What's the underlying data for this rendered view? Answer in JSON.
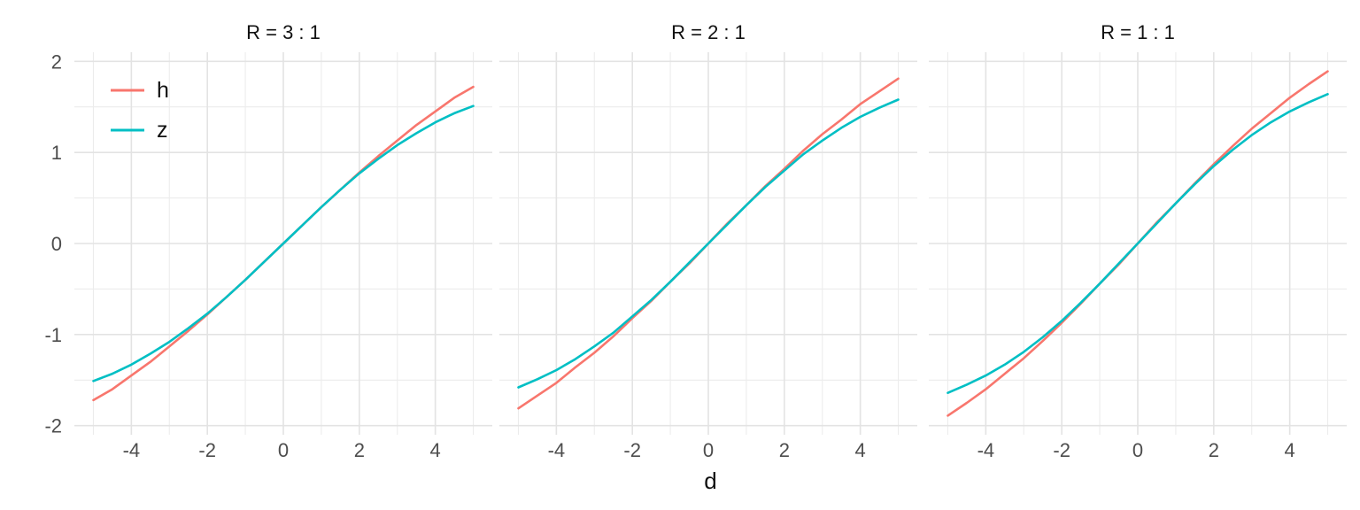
{
  "figure": {
    "xlabel": "d",
    "x_ticks": [
      "-4",
      "-2",
      "0",
      "2",
      "4"
    ],
    "x_tick_values": [
      -4,
      -2,
      0,
      2,
      4
    ],
    "y_ticks": [
      "2",
      "1",
      "0",
      "-1",
      "-2"
    ],
    "y_tick_values": [
      2,
      1,
      0,
      -1,
      -2
    ],
    "xlim": [
      -5.5,
      5.5
    ],
    "ylim": [
      -2.1,
      2.1
    ],
    "grid": {
      "x_major_step": 2,
      "x_minor_step": 1,
      "y_major_step": 1,
      "y_minor_step": 0.5
    },
    "legend": {
      "position": "inside-top-left-first-panel",
      "items": [
        "h",
        "z"
      ]
    },
    "colors": {
      "h": "#F8766D",
      "z": "#00BFC4",
      "grid_major": "#E3E3E3",
      "grid_minor": "#ECECEC",
      "axis_text": "#4D4D4D",
      "title_text": "#111111",
      "background": "#FFFFFF"
    }
  },
  "chart_data": [
    {
      "type": "line",
      "title": "R = 3 : 1",
      "x": [
        -5,
        -4.5,
        -4,
        -3.5,
        -3,
        -2.5,
        -2,
        -1.5,
        -1,
        -0.5,
        0,
        0.5,
        1,
        1.5,
        2,
        2.5,
        3,
        3.5,
        4,
        4.5,
        5
      ],
      "series": [
        {
          "name": "h",
          "values": [
            -1.72,
            -1.6,
            -1.45,
            -1.3,
            -1.13,
            -0.96,
            -0.78,
            -0.59,
            -0.4,
            -0.2,
            0,
            0.2,
            0.4,
            0.59,
            0.78,
            0.96,
            1.13,
            1.3,
            1.45,
            1.6,
            1.72
          ]
        },
        {
          "name": "z",
          "values": [
            -1.51,
            -1.43,
            -1.33,
            -1.21,
            -1.08,
            -0.93,
            -0.77,
            -0.59,
            -0.4,
            -0.2,
            0,
            0.2,
            0.4,
            0.59,
            0.77,
            0.93,
            1.08,
            1.21,
            1.33,
            1.43,
            1.51
          ]
        }
      ]
    },
    {
      "type": "line",
      "title": "R = 2 : 1",
      "x": [
        -5,
        -4.5,
        -4,
        -3.5,
        -3,
        -2.5,
        -2,
        -1.5,
        -1,
        -0.5,
        0,
        0.5,
        1,
        1.5,
        2,
        2.5,
        3,
        3.5,
        4,
        4.5,
        5
      ],
      "series": [
        {
          "name": "h",
          "values": [
            -1.81,
            -1.67,
            -1.53,
            -1.36,
            -1.2,
            -1.02,
            -0.82,
            -0.63,
            -0.42,
            -0.22,
            0,
            0.22,
            0.42,
            0.63,
            0.82,
            1.02,
            1.2,
            1.36,
            1.53,
            1.67,
            1.81
          ]
        },
        {
          "name": "z",
          "values": [
            -1.58,
            -1.49,
            -1.39,
            -1.27,
            -1.13,
            -0.98,
            -0.8,
            -0.62,
            -0.42,
            -0.21,
            0,
            0.21,
            0.42,
            0.62,
            0.8,
            0.98,
            1.13,
            1.27,
            1.39,
            1.49,
            1.58
          ]
        }
      ]
    },
    {
      "type": "line",
      "title": "R = 1 : 1",
      "x": [
        -5,
        -4.5,
        -4,
        -3.5,
        -3,
        -2.5,
        -2,
        -1.5,
        -1,
        -0.5,
        0,
        0.5,
        1,
        1.5,
        2,
        2.5,
        3,
        3.5,
        4,
        4.5,
        5
      ],
      "series": [
        {
          "name": "h",
          "values": [
            -1.89,
            -1.75,
            -1.6,
            -1.43,
            -1.26,
            -1.07,
            -0.87,
            -0.66,
            -0.44,
            -0.23,
            0,
            0.23,
            0.44,
            0.66,
            0.87,
            1.07,
            1.26,
            1.43,
            1.6,
            1.75,
            1.89
          ]
        },
        {
          "name": "z",
          "values": [
            -1.64,
            -1.55,
            -1.45,
            -1.33,
            -1.19,
            -1.03,
            -0.85,
            -0.65,
            -0.44,
            -0.22,
            0,
            0.22,
            0.44,
            0.65,
            0.85,
            1.03,
            1.19,
            1.33,
            1.45,
            1.55,
            1.64
          ]
        }
      ]
    }
  ]
}
